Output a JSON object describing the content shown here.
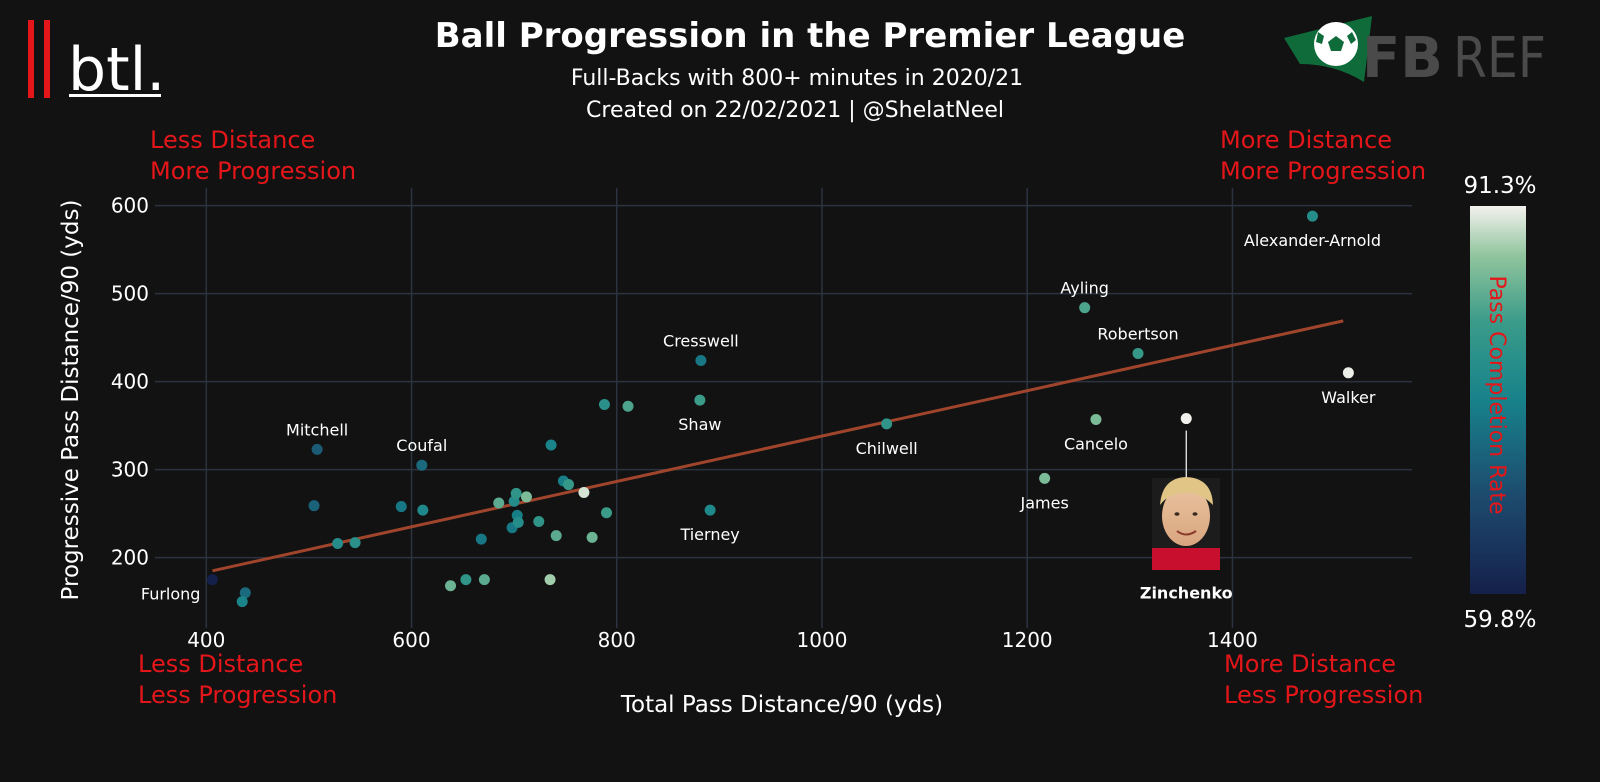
{
  "header": {
    "brand": "btl.",
    "title": "Ball Progression in the Premier League",
    "subtitle": "Full-Backs with 800+ minutes in 2020/21",
    "created": "Created on 22/02/2021 | @ShelatNeel",
    "source_logo": "FBREF",
    "source_logo_parts": [
      "FB",
      "REF"
    ]
  },
  "quadrants": {
    "top_left": [
      "Less Distance",
      "More Progression"
    ],
    "top_right": [
      "More Distance",
      "More Progression"
    ],
    "bottom_left": [
      "Less Distance",
      "Less Progression"
    ],
    "bottom_right": [
      "More Distance",
      "Less Progression"
    ]
  },
  "colors": {
    "background": "#121212",
    "quadrant_text": "#e4161a",
    "trendline": "#a0452c",
    "grid": "#2c3340",
    "brand_bars": "#e4161a",
    "fbref_green": "#0f6b3a",
    "colormap": [
      "#15204a",
      "#1d4a6e",
      "#17828a",
      "#3a9b89",
      "#8fc49c",
      "#f3f1ee"
    ]
  },
  "chart_data": {
    "type": "scatter",
    "title": "Ball Progression in the Premier League",
    "subtitle": "Full-Backs with 800+ minutes in 2020/21",
    "xlabel": "Total Pass Distance/90 (yds)",
    "ylabel": "Progressive Pass Distance/90 (yds)",
    "xlim": [
      350,
      1575
    ],
    "ylim": [
      120,
      620
    ],
    "xticks": [
      400,
      600,
      800,
      1000,
      1200,
      1400
    ],
    "yticks": [
      200,
      300,
      400,
      500,
      600
    ],
    "grid": true,
    "colorbar": {
      "label": "Pass Completion Rate",
      "min_label": "59.8%",
      "max_label": "91.3%",
      "min": 59.8,
      "max": 91.3
    },
    "trendline": {
      "x": [
        406,
        1508
      ],
      "y": [
        185,
        469
      ]
    },
    "points": [
      {
        "x": 1478,
        "y": 588,
        "c": 78,
        "label": "Alexander-Arnold",
        "label_pos": "below"
      },
      {
        "x": 1256,
        "y": 484,
        "c": 83,
        "label": "Ayling",
        "label_pos": "above"
      },
      {
        "x": 1308,
        "y": 432,
        "c": 81,
        "label": "Robertson",
        "label_pos": "above"
      },
      {
        "x": 1513,
        "y": 410,
        "c": 91,
        "label": "Walker",
        "label_pos": "below"
      },
      {
        "x": 1267,
        "y": 357,
        "c": 86,
        "label": "Cancelo",
        "label_pos": "below"
      },
      {
        "x": 1355,
        "y": 358,
        "c": 91.3,
        "label": "Zinchenko",
        "label_pos": "photo"
      },
      {
        "x": 1217,
        "y": 290,
        "c": 86,
        "label": "James",
        "label_pos": "below"
      },
      {
        "x": 1063,
        "y": 352,
        "c": 80,
        "label": "Chilwell",
        "label_pos": "below"
      },
      {
        "x": 882,
        "y": 424,
        "c": 74,
        "label": "Cresswell",
        "label_pos": "above"
      },
      {
        "x": 881,
        "y": 379,
        "c": 82,
        "label": "Shaw",
        "label_pos": "below"
      },
      {
        "x": 891,
        "y": 254,
        "c": 77,
        "label": "Tierney",
        "label_pos": "below"
      },
      {
        "x": 508,
        "y": 323,
        "c": 70,
        "label": "Mitchell",
        "label_pos": "above"
      },
      {
        "x": 610,
        "y": 305,
        "c": 72,
        "label": "Coufal",
        "label_pos": "above"
      },
      {
        "x": 406,
        "y": 175,
        "c": 59.8,
        "label": "Furlong",
        "label_pos": "left"
      },
      {
        "x": 438,
        "y": 160,
        "c": 72,
        "c2": 0
      },
      {
        "x": 435,
        "y": 150,
        "c": 76
      },
      {
        "x": 505,
        "y": 259,
        "c": 71
      },
      {
        "x": 528,
        "y": 216,
        "c": 78
      },
      {
        "x": 545,
        "y": 217,
        "c": 79
      },
      {
        "x": 590,
        "y": 258,
        "c": 74
      },
      {
        "x": 611,
        "y": 254,
        "c": 77
      },
      {
        "x": 638,
        "y": 168,
        "c": 85
      },
      {
        "x": 653,
        "y": 175,
        "c": 80
      },
      {
        "x": 668,
        "y": 221,
        "c": 74
      },
      {
        "x": 671,
        "y": 175,
        "c": 84
      },
      {
        "x": 685,
        "y": 262,
        "c": 84
      },
      {
        "x": 698,
        "y": 234,
        "c": 74
      },
      {
        "x": 700,
        "y": 264,
        "c": 78
      },
      {
        "x": 702,
        "y": 273,
        "c": 80
      },
      {
        "x": 703,
        "y": 248,
        "c": 75
      },
      {
        "x": 704,
        "y": 240,
        "c": 78
      },
      {
        "x": 712,
        "y": 269,
        "c": 86
      },
      {
        "x": 724,
        "y": 241,
        "c": 80
      },
      {
        "x": 735,
        "y": 175,
        "c": 88
      },
      {
        "x": 736,
        "y": 328,
        "c": 76
      },
      {
        "x": 741,
        "y": 225,
        "c": 84
      },
      {
        "x": 748,
        "y": 287,
        "c": 75
      },
      {
        "x": 753,
        "y": 283,
        "c": 81
      },
      {
        "x": 768,
        "y": 274,
        "c": 90
      },
      {
        "x": 776,
        "y": 223,
        "c": 85
      },
      {
        "x": 788,
        "y": 374,
        "c": 79
      },
      {
        "x": 790,
        "y": 251,
        "c": 82
      },
      {
        "x": 811,
        "y": 372,
        "c": 83
      }
    ]
  }
}
